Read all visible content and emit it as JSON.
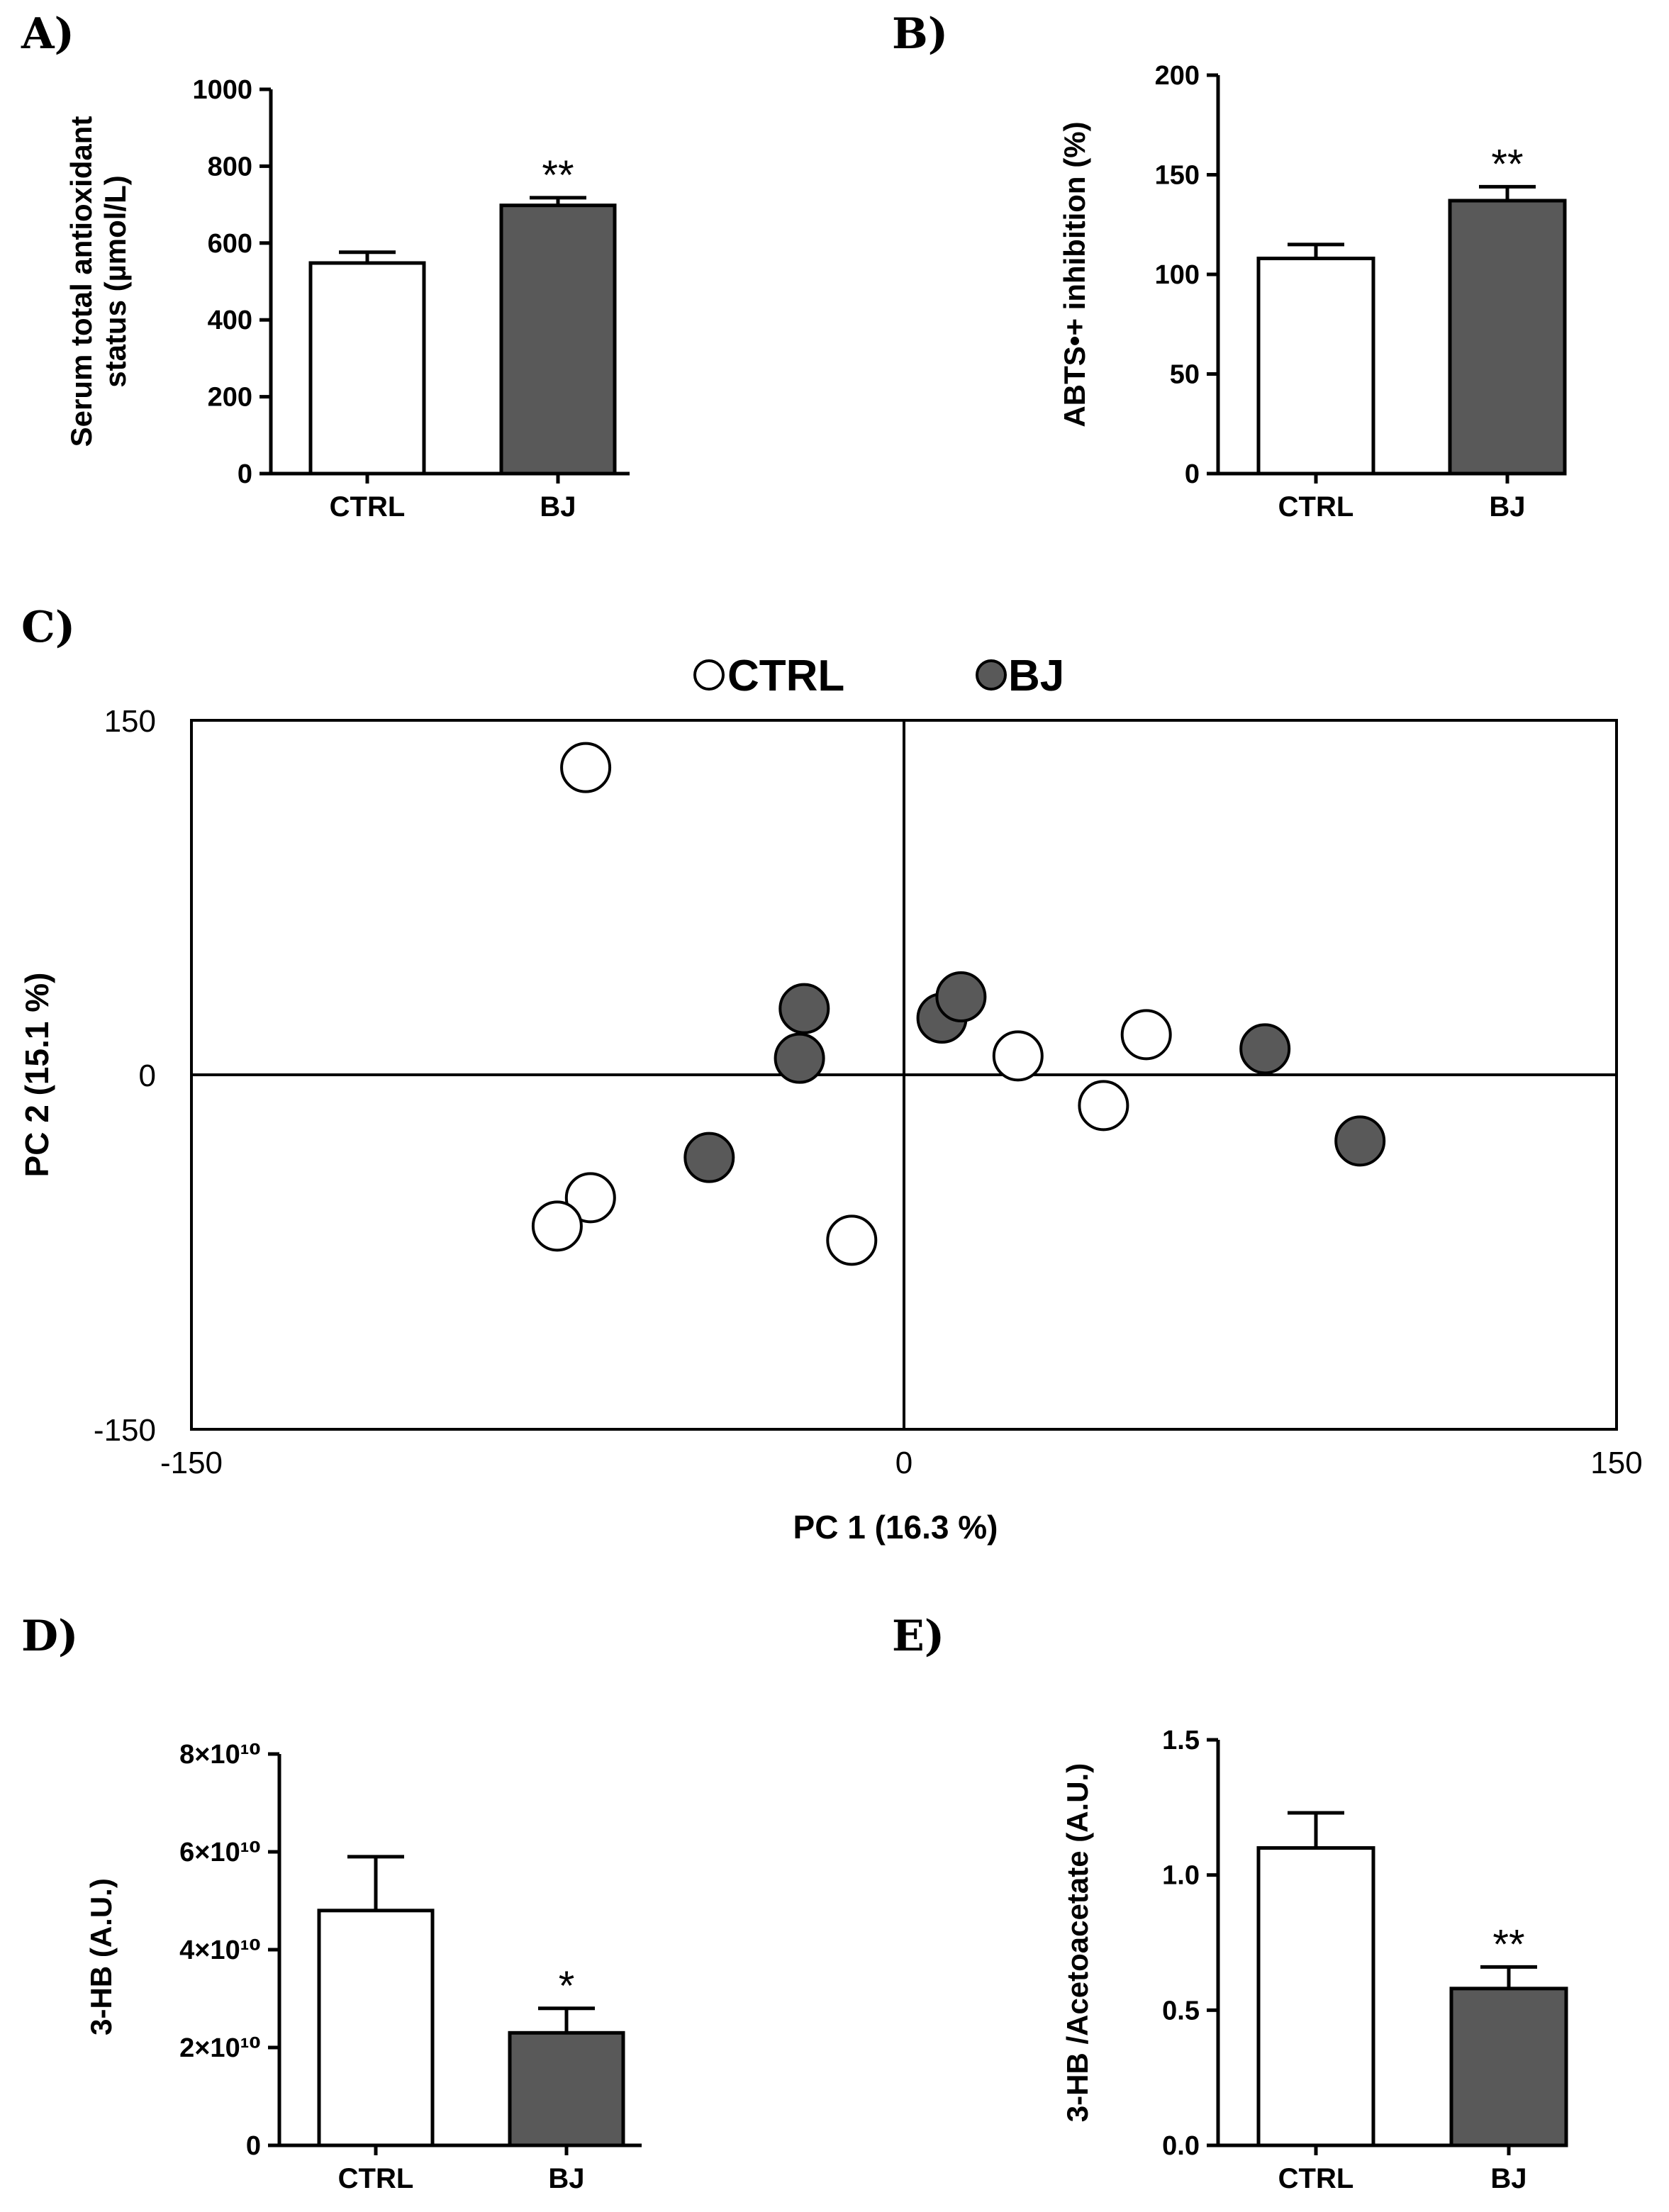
{
  "panels": {
    "a": "A)",
    "b": "B)",
    "c": "C)",
    "d": "D)",
    "e": "E)"
  },
  "colors": {
    "ctrl": "#ffffff",
    "bj": "#595959",
    "stroke": "#000000"
  },
  "chart_data": [
    {
      "id": "A",
      "type": "bar",
      "categories": [
        "CTRL",
        "BJ"
      ],
      "values": [
        548,
        698
      ],
      "errors": [
        28,
        20
      ],
      "significance": [
        "",
        "**"
      ],
      "ylabel_lines": [
        "Serum total antioxidant",
        "status (µmol/L)"
      ],
      "ylim": [
        0,
        1000
      ],
      "yticks": [
        0,
        200,
        400,
        600,
        800,
        1000
      ],
      "ytick_labels": [
        "0",
        "200",
        "400",
        "600",
        "800",
        "1000"
      ]
    },
    {
      "id": "B",
      "type": "bar",
      "categories": [
        "CTRL",
        "BJ"
      ],
      "values": [
        108,
        137
      ],
      "errors": [
        7,
        7
      ],
      "significance": [
        "",
        "**"
      ],
      "ylabel_lines": [
        "ABTS•+ inhibition (%)"
      ],
      "ylim": [
        0,
        200
      ],
      "yticks": [
        0,
        50,
        100,
        150,
        200
      ],
      "ytick_labels": [
        "0",
        "50",
        "100",
        "150",
        "200"
      ]
    },
    {
      "id": "C",
      "type": "scatter",
      "xlabel": "PC 1 (16.3 %)",
      "ylabel": "PC 2 (15.1 %)",
      "xlim": [
        -150,
        150
      ],
      "ylim": [
        -150,
        150
      ],
      "xticks": [
        -150,
        0,
        150
      ],
      "xtick_labels": [
        "-150",
        "0",
        "150"
      ],
      "yticks": [
        -150,
        0,
        150
      ],
      "ytick_labels": [
        "-150",
        "0",
        "150"
      ],
      "legend": [
        "CTRL",
        "BJ"
      ],
      "series": [
        {
          "name": "CTRL",
          "x": [
            -67,
            -66,
            -73,
            -11,
            24,
            51,
            42
          ],
          "y": [
            130,
            -52,
            -64,
            -70,
            8,
            17,
            -13
          ]
        },
        {
          "name": "BJ",
          "x": [
            -21,
            -22,
            8,
            12,
            -41,
            76,
            96
          ],
          "y": [
            28,
            7,
            24,
            33,
            -35,
            11,
            -28
          ]
        }
      ]
    },
    {
      "id": "D",
      "type": "bar",
      "categories": [
        "CTRL",
        "BJ"
      ],
      "values": [
        48000000000.0,
        23000000000.0
      ],
      "errors": [
        11000000000.0,
        5000000000.0
      ],
      "significance": [
        "",
        "*"
      ],
      "ylabel_lines": [
        "3-HB (A.U.)"
      ],
      "ylim": [
        0,
        80000000000.0
      ],
      "yticks": [
        0,
        20000000000.0,
        40000000000.0,
        60000000000.0,
        80000000000.0
      ],
      "ytick_labels": [
        "0",
        "2×10¹⁰",
        "4×10¹⁰",
        "6×10¹⁰",
        "8×10¹⁰"
      ]
    },
    {
      "id": "E",
      "type": "bar",
      "categories": [
        "CTRL",
        "BJ"
      ],
      "values": [
        1.1,
        0.58
      ],
      "errors": [
        0.13,
        0.08
      ],
      "significance": [
        "",
        "**"
      ],
      "ylabel_lines": [
        "3-HB /Acetoacetate (A.U.)"
      ],
      "ylim": [
        0,
        1.5
      ],
      "yticks": [
        0,
        0.5,
        1.0,
        1.5
      ],
      "ytick_labels": [
        "0.0",
        "0.5",
        "1.0",
        "1.5"
      ]
    }
  ]
}
